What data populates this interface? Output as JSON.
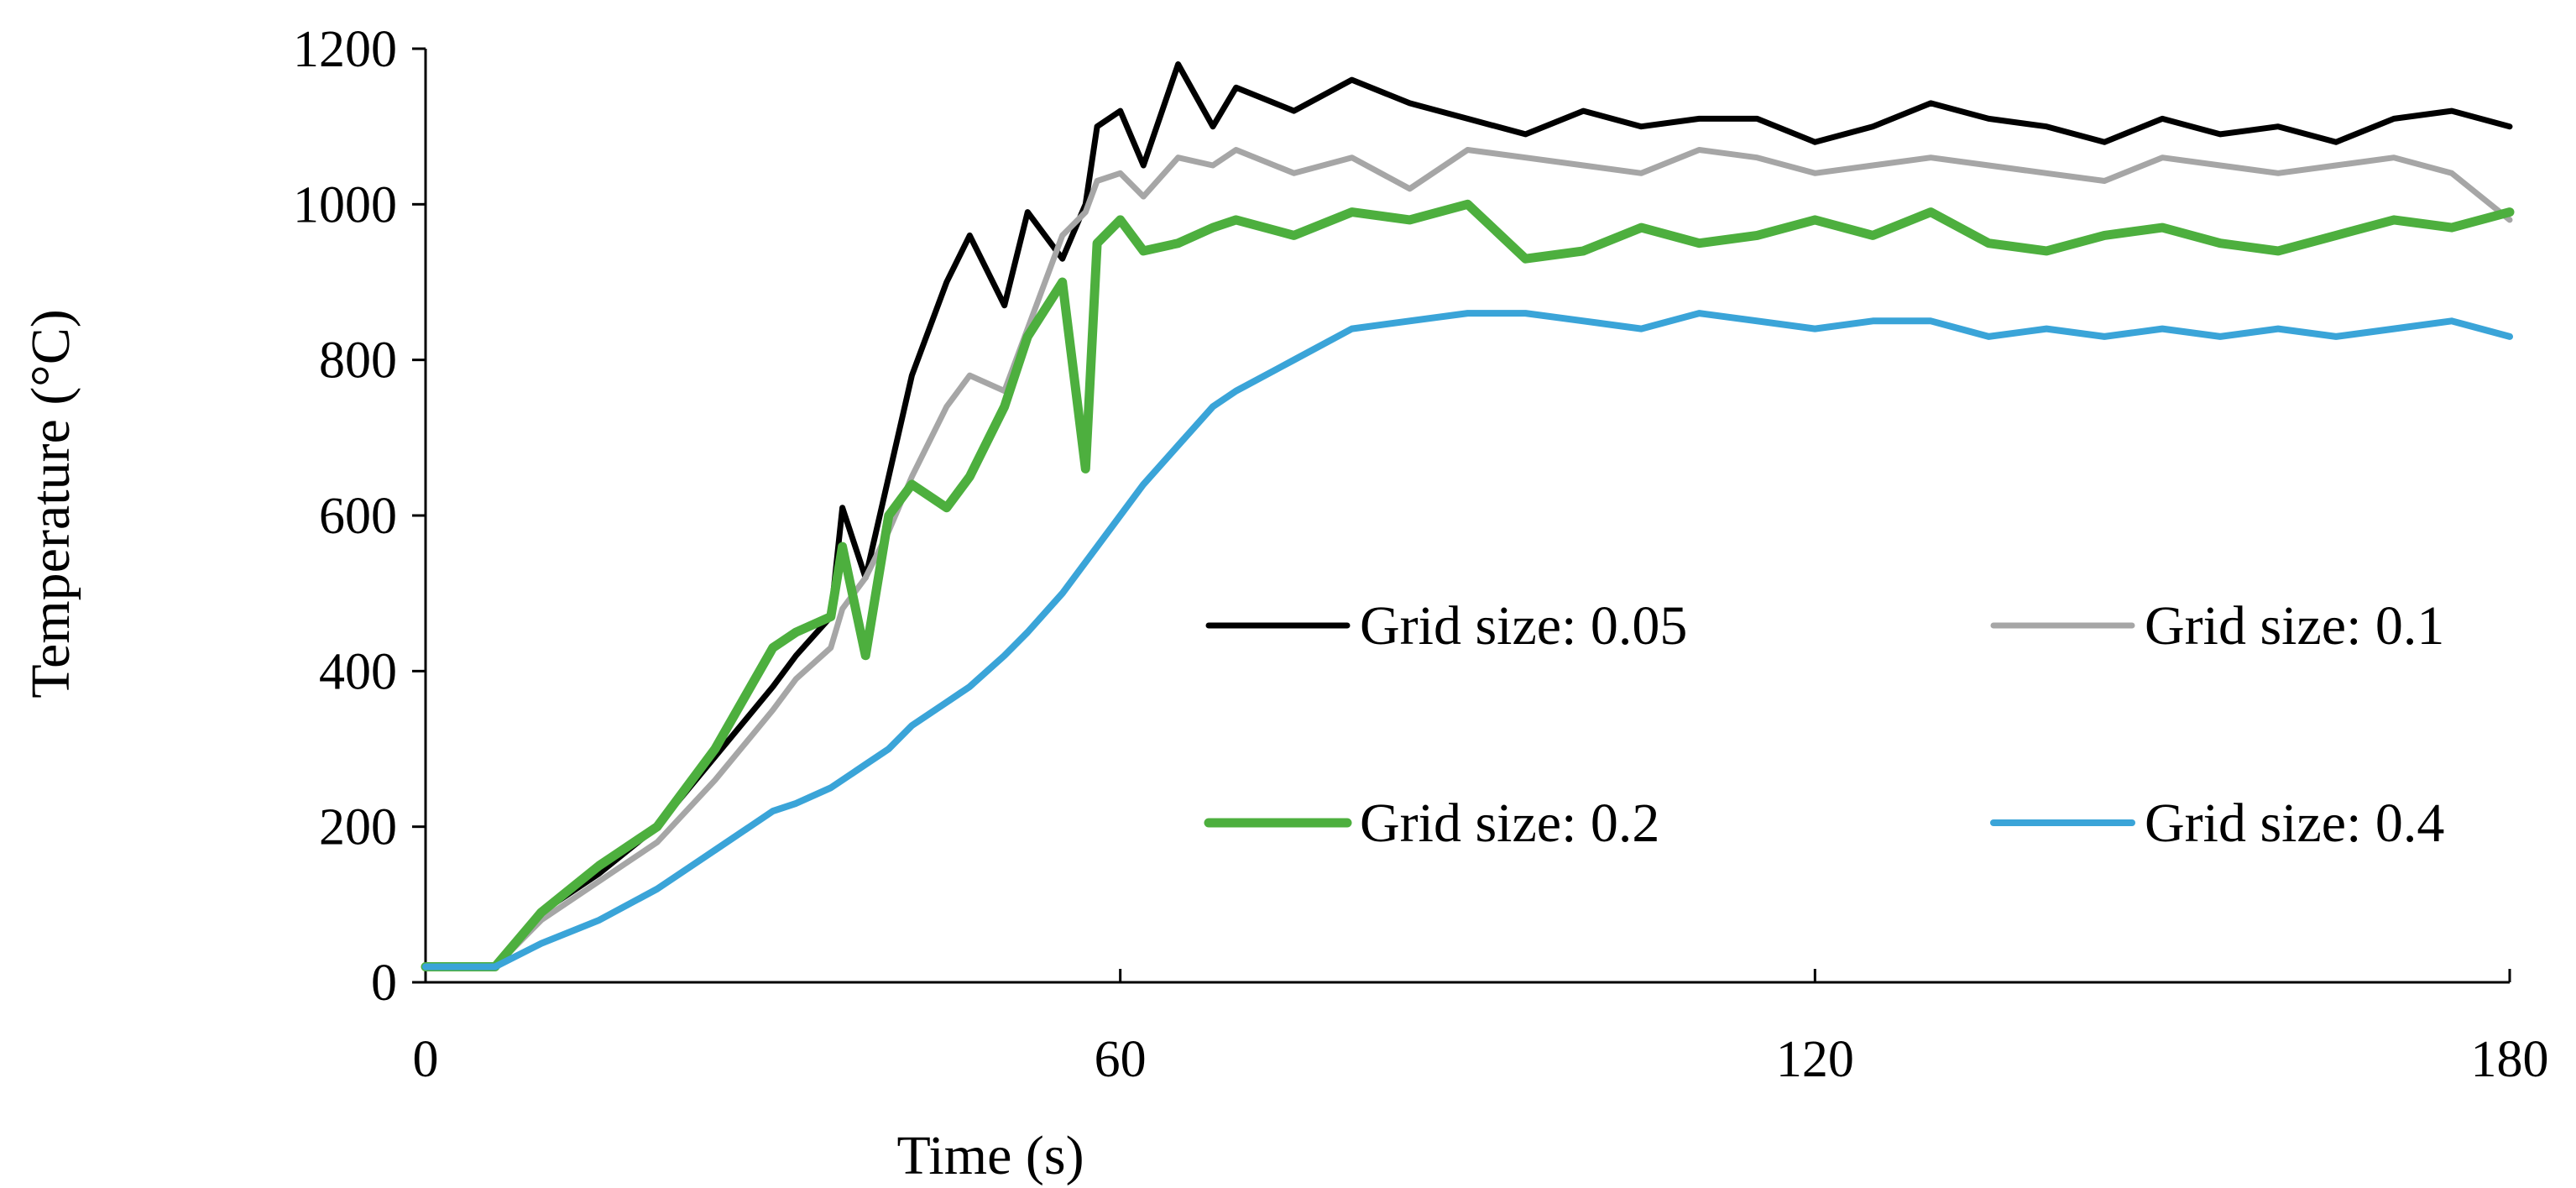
{
  "chart_data": {
    "type": "line",
    "title": "",
    "xlabel": "Time (s)",
    "ylabel": "Temperature (°C)",
    "xlim": [
      0,
      180
    ],
    "ylim": [
      0,
      1200
    ],
    "x_ticks": [
      0,
      60,
      120,
      180
    ],
    "x_tick_labels": [
      "0",
      "60",
      "120",
      "180"
    ],
    "y_ticks": [
      0,
      200,
      400,
      600,
      800,
      1000,
      1200
    ],
    "y_tick_labels": [
      "0",
      "200",
      "400",
      "600",
      "800",
      "1000",
      "1200"
    ],
    "grid": false,
    "legend_position": "center-right",
    "x": [
      0,
      5,
      6,
      10,
      15,
      20,
      25,
      30,
      32,
      35,
      36,
      38,
      40,
      42,
      45,
      47,
      50,
      52,
      55,
      57,
      58,
      60,
      62,
      65,
      68,
      70,
      75,
      80,
      85,
      90,
      95,
      100,
      105,
      110,
      115,
      120,
      125,
      130,
      135,
      140,
      145,
      150,
      155,
      160,
      165,
      170,
      175,
      180
    ],
    "series": [
      {
        "name": "Grid size: 0.05",
        "color": "#000000",
        "values": [
          20,
          20,
          20,
          90,
          140,
          200,
          290,
          380,
          420,
          470,
          610,
          520,
          650,
          780,
          900,
          960,
          870,
          990,
          930,
          1000,
          1100,
          1120,
          1050,
          1180,
          1100,
          1150,
          1120,
          1160,
          1130,
          1110,
          1090,
          1120,
          1100,
          1110,
          1110,
          1080,
          1100,
          1130,
          1110,
          1100,
          1080,
          1110,
          1090,
          1100,
          1080,
          1110,
          1120,
          1100
        ]
      },
      {
        "name": "Grid size: 0.1",
        "color": "#a6a6a6",
        "values": [
          20,
          20,
          20,
          80,
          130,
          180,
          260,
          350,
          390,
          430,
          480,
          520,
          580,
          650,
          740,
          780,
          760,
          840,
          960,
          990,
          1030,
          1040,
          1010,
          1060,
          1050,
          1070,
          1040,
          1060,
          1020,
          1070,
          1060,
          1050,
          1040,
          1070,
          1060,
          1040,
          1050,
          1060,
          1050,
          1040,
          1030,
          1060,
          1050,
          1040,
          1050,
          1060,
          1040,
          980
        ]
      },
      {
        "name": "Grid size: 0.2",
        "color": "#4daf3e",
        "values": [
          20,
          20,
          20,
          90,
          150,
          200,
          300,
          430,
          450,
          470,
          560,
          420,
          600,
          640,
          610,
          650,
          740,
          830,
          900,
          660,
          950,
          980,
          940,
          950,
          970,
          980,
          960,
          990,
          980,
          1000,
          930,
          940,
          970,
          950,
          960,
          980,
          960,
          990,
          950,
          940,
          960,
          970,
          950,
          940,
          960,
          980,
          970,
          990
        ]
      },
      {
        "name": "Grid size: 0.4",
        "color": "#3aa4d8",
        "values": [
          20,
          20,
          20,
          50,
          80,
          120,
          170,
          220,
          230,
          250,
          260,
          280,
          300,
          330,
          360,
          380,
          420,
          450,
          500,
          540,
          560,
          600,
          640,
          690,
          740,
          760,
          800,
          840,
          850,
          860,
          860,
          850,
          840,
          860,
          850,
          840,
          850,
          850,
          830,
          840,
          830,
          840,
          830,
          840,
          830,
          840,
          850,
          830
        ]
      }
    ]
  }
}
